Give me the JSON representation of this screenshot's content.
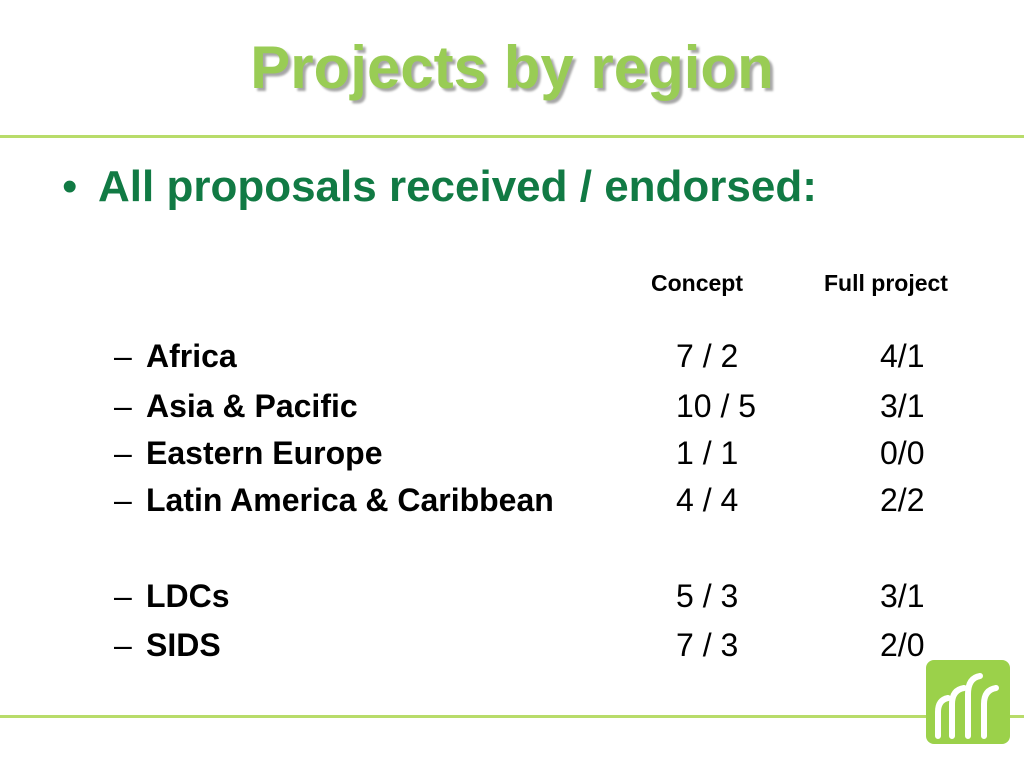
{
  "slide": {
    "title": "Projects by region",
    "bullet": "All proposals received / endorsed:",
    "columns": {
      "concept": "Concept",
      "full_project": "Full project"
    },
    "rows": [
      {
        "dash": "–",
        "region": "Africa",
        "concept": "7 / 2",
        "full": "4/1"
      },
      {
        "dash": "–",
        "region": "Asia & Pacific",
        "concept": "10 / 5",
        "full": "3/1"
      },
      {
        "dash": "–",
        "region": "Eastern Europe",
        "concept": "1 / 1",
        "full": "0/0"
      },
      {
        "dash": "–",
        "region": "Latin America & Caribbean",
        "concept": "4 / 4",
        "full": "2/2"
      },
      {
        "dash": "–",
        "region": "LDCs",
        "concept": "5 / 3",
        "full": "3/1"
      },
      {
        "dash": "–",
        "region": "SIDS",
        "concept": "7 / 3",
        "full": "2/0"
      }
    ]
  },
  "logo": {
    "icon": "fountain-logo-icon"
  },
  "colors": {
    "title": "#99cc55",
    "bullet": "#117a44",
    "rule": "#b8dc6a",
    "logo_bg": "#9bd14a"
  }
}
